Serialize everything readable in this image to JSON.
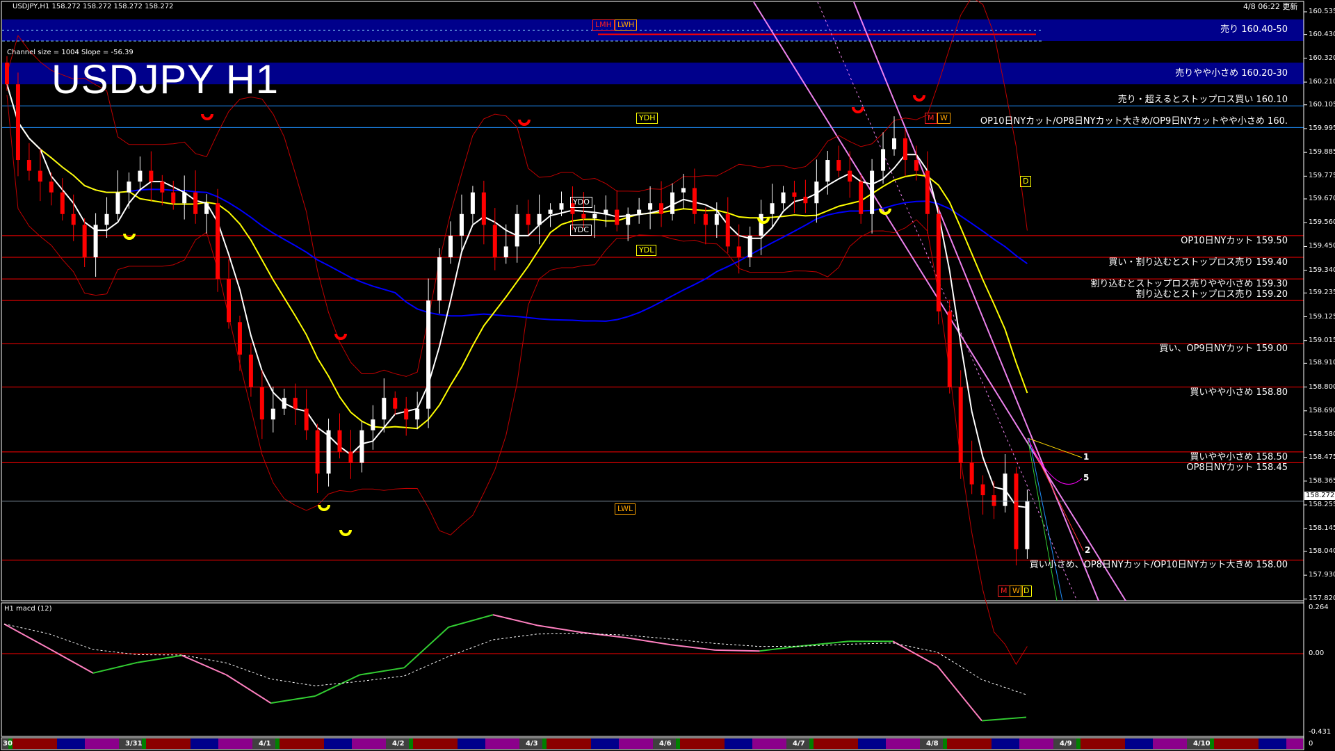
{
  "header": {
    "symbol_info": "USDJPY,H1  158.272 158.272 158.272 158.272",
    "updated": "4/8 06:22 更新",
    "title": "USDJPY H1",
    "channel_info": "Channel size = 1004 Slope = -56.39"
  },
  "chart_data": {
    "type": "candlestick",
    "symbol": "USDJPY",
    "timeframe": "H1",
    "current_price": 158.272,
    "current_price_label": "158.272",
    "ylim": [
      157.82,
      160.535
    ],
    "price_axis_ticks": [
      "160.535",
      "160.430",
      "160.320",
      "160.210",
      "160.105",
      "159.995",
      "159.885",
      "159.775",
      "159.670",
      "159.560",
      "159.450",
      "159.340",
      "159.235",
      "159.125",
      "159.015",
      "158.910",
      "158.800",
      "158.690",
      "158.580",
      "158.475",
      "158.365",
      "158.255",
      "158.145",
      "158.040",
      "157.930",
      "157.820"
    ],
    "time_labels": [
      "30",
      "3/31",
      "4/1",
      "4/2",
      "4/3",
      "4/6",
      "4/7",
      "4/8",
      "4/9",
      "4/10"
    ],
    "closes": [
      160.2,
      159.85,
      159.8,
      159.75,
      159.7,
      159.6,
      159.55,
      159.4,
      159.55,
      159.6,
      159.7,
      159.75,
      159.8,
      159.75,
      159.7,
      159.65,
      159.7,
      159.6,
      159.65,
      159.3,
      159.1,
      158.95,
      158.8,
      158.65,
      158.7,
      158.75,
      158.7,
      158.6,
      158.4,
      158.6,
      158.5,
      158.45,
      158.6,
      158.65,
      158.75,
      158.7,
      158.65,
      158.7,
      159.2,
      159.4,
      159.5,
      159.6,
      159.7,
      159.55,
      159.4,
      159.45,
      159.6,
      159.55,
      159.6,
      159.62,
      159.65,
      159.6,
      159.58,
      159.6,
      159.62,
      159.55,
      159.6,
      159.62,
      159.65,
      159.6,
      159.7,
      159.72,
      159.6,
      159.55,
      159.6,
      159.45,
      159.4,
      159.5,
      159.6,
      159.65,
      159.7,
      159.68,
      159.65,
      159.75,
      159.85,
      159.8,
      159.75,
      159.6,
      159.8,
      159.9,
      159.95,
      159.85,
      159.8,
      159.6,
      159.15,
      158.8,
      158.45,
      158.35,
      158.3,
      158.25,
      158.4,
      158.05,
      158.272
    ],
    "zones": [
      {
        "from": 160.4,
        "to": 160.5,
        "label": "売り 160.40-50",
        "color": "#00008b"
      },
      {
        "from": 160.2,
        "to": 160.3,
        "label": "売りやや小さめ 160.20-30",
        "color": "#00008b"
      }
    ],
    "levels": [
      {
        "price": 160.1,
        "label": "売り・超えるとストップロス買い 160.10",
        "color": "#1e90ff",
        "anchor": "above"
      },
      {
        "price": 160.0,
        "label": "OP10日NYカット/OP8日NYカット大きめ/OP9日NYカットやや小さめ 160.",
        "color": "#1e90ff",
        "anchor": "above"
      },
      {
        "price": 159.5,
        "label": "OP10日NYカット 159.50",
        "color": "#ff0000",
        "anchor": "below"
      },
      {
        "price": 159.4,
        "label": "買い・割り込むとストップロス売り 159.40",
        "color": "#ff0000",
        "anchor": "below"
      },
      {
        "price": 159.3,
        "label": "割り込むとストップロス売りやや小さめ 159.30",
        "color": "#ff0000",
        "anchor": "below"
      },
      {
        "price": 159.2,
        "label": "割り込むとストップロス売り 159.20",
        "color": "#ff0000",
        "anchor": "above"
      },
      {
        "price": 159.0,
        "label": "買い、OP9日NYカット 159.00",
        "color": "#ff0000",
        "anchor": "below"
      },
      {
        "price": 158.8,
        "label": "買いやや小さめ 158.80",
        "color": "#ff0000",
        "anchor": "below"
      },
      {
        "price": 158.5,
        "label": "買いやや小さめ 158.50",
        "color": "#ff0000",
        "anchor": "below"
      },
      {
        "price": 158.45,
        "label": "OP8日NYカット 158.45",
        "color": "#ff0000",
        "anchor": "below"
      },
      {
        "price": 158.0,
        "label": "買い小さめ、OP8日NYカット/OP10日NYカット大きめ 158.00",
        "color": "#ff0000",
        "anchor": "below"
      }
    ],
    "markers": {
      "ydh": "YDH",
      "ydo": "YDO",
      "ydc": "YDC",
      "ydl": "YDL",
      "lmh": "LMH",
      "lwh": "LWH",
      "lwl": "LWL",
      "m": "M",
      "w": "W",
      "d": "D",
      "wave_1": "1",
      "wave_5": "5",
      "wave_2": "2"
    },
    "colors": {
      "up": "#ffffff",
      "down": "#ff0000",
      "ma_fast": "#ffffff",
      "ma_mid": "#ffff00",
      "ma_slow": "#0000ff",
      "trendline": "#ee82ee"
    },
    "macd": {
      "title": "H1  macd (12)",
      "ticks": [
        "0.264",
        "0.00",
        "-0.431"
      ],
      "time_bar_zero": "0",
      "values": [
        0.168,
        0.03,
        -0.11,
        -0.05,
        -0.01,
        -0.12,
        -0.28,
        -0.24,
        -0.12,
        -0.08,
        0.15,
        0.22,
        0.16,
        0.12,
        0.09,
        0.05,
        0.02,
        0.015,
        0.045,
        0.07,
        0.07,
        -0.07,
        -0.38,
        -0.36
      ],
      "rising_color": "#32cd32",
      "falling_color": "#ff80c0"
    }
  }
}
